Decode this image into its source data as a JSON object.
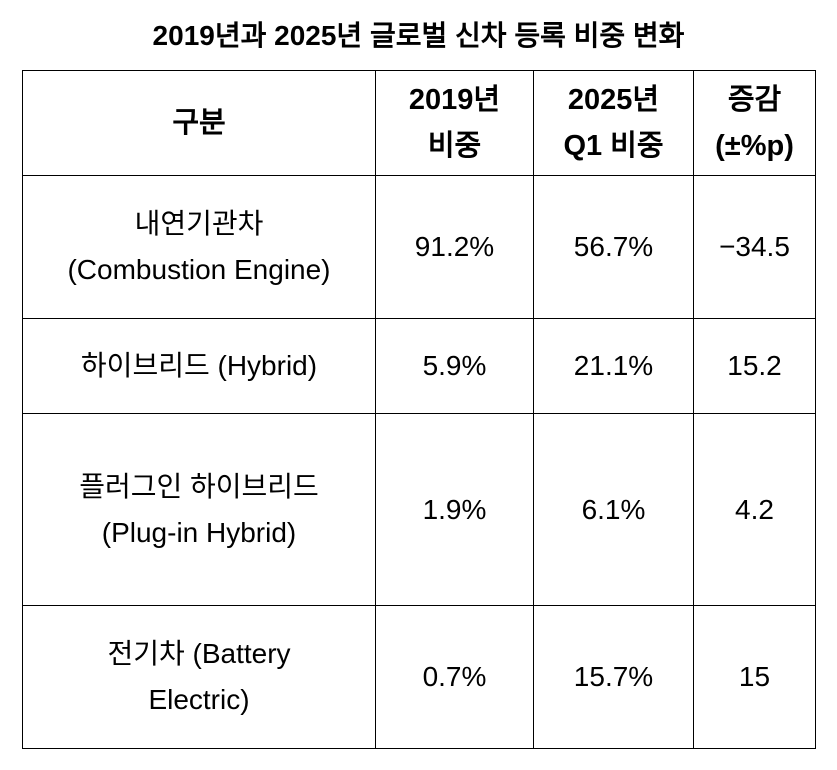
{
  "title": "2019년과 2025년 글로벌 신차 등록 비중 변화",
  "table": {
    "headers": [
      {
        "lines": [
          "구분"
        ]
      },
      {
        "lines": [
          "2019년",
          "비중"
        ]
      },
      {
        "lines": [
          "2025년",
          "Q1 비중"
        ]
      },
      {
        "lines": [
          "증감",
          "(±%p)"
        ]
      }
    ],
    "rows": [
      {
        "label": [
          "내연기관차",
          "(Combustion Engine)"
        ],
        "y2019": "91.2%",
        "y2025": "56.7%",
        "change": "−34.5"
      },
      {
        "label": [
          "하이브리드 (Hybrid)"
        ],
        "y2019": "5.9%",
        "y2025": "21.1%",
        "change": "15.2"
      },
      {
        "label": [
          "플러그인 하이브리드",
          "(Plug-in Hybrid)"
        ],
        "y2019": "1.9%",
        "y2025": "6.1%",
        "change": "4.2"
      },
      {
        "label": [
          "전기차 (Battery",
          "Electric)"
        ],
        "y2019": "0.7%",
        "y2025": "15.7%",
        "change": "15"
      }
    ]
  }
}
